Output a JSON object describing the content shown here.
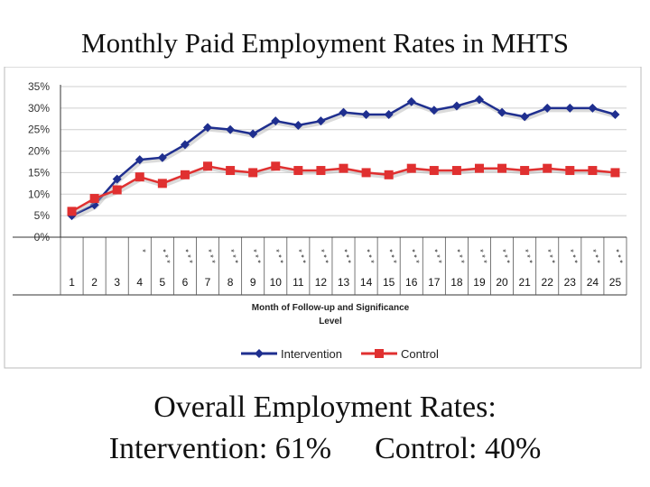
{
  "slide": {
    "title": "Monthly Paid Employment Rates in MHTS",
    "summary_line1": "Overall Employment Rates:",
    "summary_intervention": "Intervention:  61%",
    "summary_control": "Control:  40%"
  },
  "chart_data": {
    "type": "line",
    "x": [
      "1",
      "2",
      "3",
      "4",
      "5",
      "6",
      "7",
      "8",
      "9",
      "10",
      "11",
      "12",
      "13",
      "14",
      "15",
      "16",
      "17",
      "18",
      "19",
      "20",
      "21",
      "22",
      "23",
      "24",
      "25"
    ],
    "significance": [
      "",
      "",
      "",
      "*",
      "***",
      "***",
      "***",
      "***",
      "***",
      "***",
      "***",
      "***",
      "***",
      "***",
      "***",
      "***",
      "***",
      "***",
      "***",
      "***",
      "***",
      "***",
      "***",
      "***",
      "***"
    ],
    "xlabel_line1": "Month of Follow-up and Significance",
    "xlabel_line2": "Level",
    "ylabel": "",
    "yticks": [
      "0%",
      "5%",
      "10%",
      "15%",
      "20%",
      "25%",
      "30%",
      "35%"
    ],
    "ylim": [
      0,
      35
    ],
    "grid": true,
    "legend_position": "bottom",
    "series": [
      {
        "name": "Intervention",
        "color": "#1f2f8f",
        "marker": "diamond",
        "values": [
          5,
          7.5,
          13.5,
          18,
          18.5,
          21.5,
          25.5,
          25,
          24,
          27,
          26,
          27,
          29,
          28.5,
          28.5,
          31.5,
          29.5,
          30.5,
          32,
          29,
          28,
          30,
          30,
          30,
          28.5
        ]
      },
      {
        "name": "Control",
        "color": "#e03030",
        "marker": "square",
        "values": [
          6,
          9,
          11,
          14,
          12.5,
          14.5,
          16.5,
          15.5,
          15,
          16.5,
          15.5,
          15.5,
          16,
          15,
          14.5,
          16,
          15.5,
          15.5,
          16,
          16,
          15.5,
          16,
          15.5,
          15.5,
          15
        ]
      }
    ]
  }
}
